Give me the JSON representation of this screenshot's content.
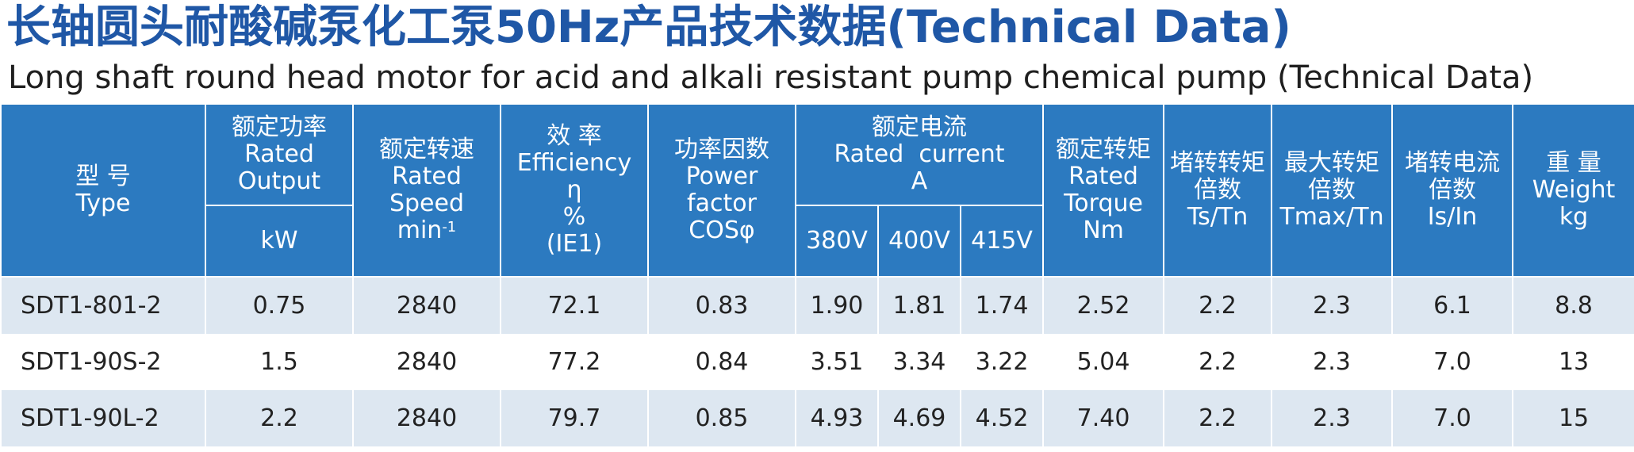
{
  "title_cn": "长轴圆头耐酸碱泵化工泵50Hz产品技术数据(Technical Data)",
  "title_en": "Long shaft round head motor for acid and alkali resistant pump chemical pump (Technical Data)",
  "colors": {
    "header_bg": "#2c7ac0",
    "title_blue": "#1f57a6",
    "row_alt": "#dde7f1"
  },
  "header": {
    "type": [
      "型 号",
      "Type"
    ],
    "rated_output": [
      "额定功率",
      "Rated",
      "Output"
    ],
    "rated_output_unit": "kW",
    "rated_speed": [
      "额定转速",
      "Rated",
      "Speed"
    ],
    "rated_speed_unit": "min",
    "rated_speed_unit_sup": "-1",
    "efficiency": [
      "效 率",
      "Efficiency",
      "η",
      "%",
      "(IE1)"
    ],
    "power_factor": [
      "功率因数",
      "Power",
      "factor",
      "COSφ"
    ],
    "rated_current": [
      "额定电流",
      "Rated  current",
      "A"
    ],
    "voltages": [
      "380V",
      "400V",
      "415V"
    ],
    "rated_torque": [
      "额定转矩",
      "Rated",
      "Torque",
      "Nm"
    ],
    "locked_torque": [
      "堵转转矩",
      "倍数",
      "Ts/Tn"
    ],
    "max_torque": [
      "最大转矩",
      "倍数",
      "Tmax/Tn"
    ],
    "locked_current": [
      "堵转电流",
      "倍数",
      "Is/In"
    ],
    "weight": [
      "重 量",
      "Weight",
      "kg"
    ]
  },
  "rows": [
    {
      "type": "SDT1-801-2",
      "kw": "0.75",
      "speed": "2840",
      "eff": "72.1",
      "pf": "0.83",
      "i380": "1.90",
      "i400": "1.81",
      "i415": "1.74",
      "torque": "2.52",
      "ts": "2.2",
      "tmax": "2.3",
      "is": "6.1",
      "weight": "8.8"
    },
    {
      "type": "SDT1-90S-2",
      "kw": "1.5",
      "speed": "2840",
      "eff": "77.2",
      "pf": "0.84",
      "i380": "3.51",
      "i400": "3.34",
      "i415": "3.22",
      "torque": "5.04",
      "ts": "2.2",
      "tmax": "2.3",
      "is": "7.0",
      "weight": "13"
    },
    {
      "type": "SDT1-90L-2",
      "kw": "2.2",
      "speed": "2840",
      "eff": "79.7",
      "pf": "0.85",
      "i380": "4.93",
      "i400": "4.69",
      "i415": "4.52",
      "torque": "7.40",
      "ts": "2.2",
      "tmax": "2.3",
      "is": "7.0",
      "weight": "15"
    }
  ]
}
